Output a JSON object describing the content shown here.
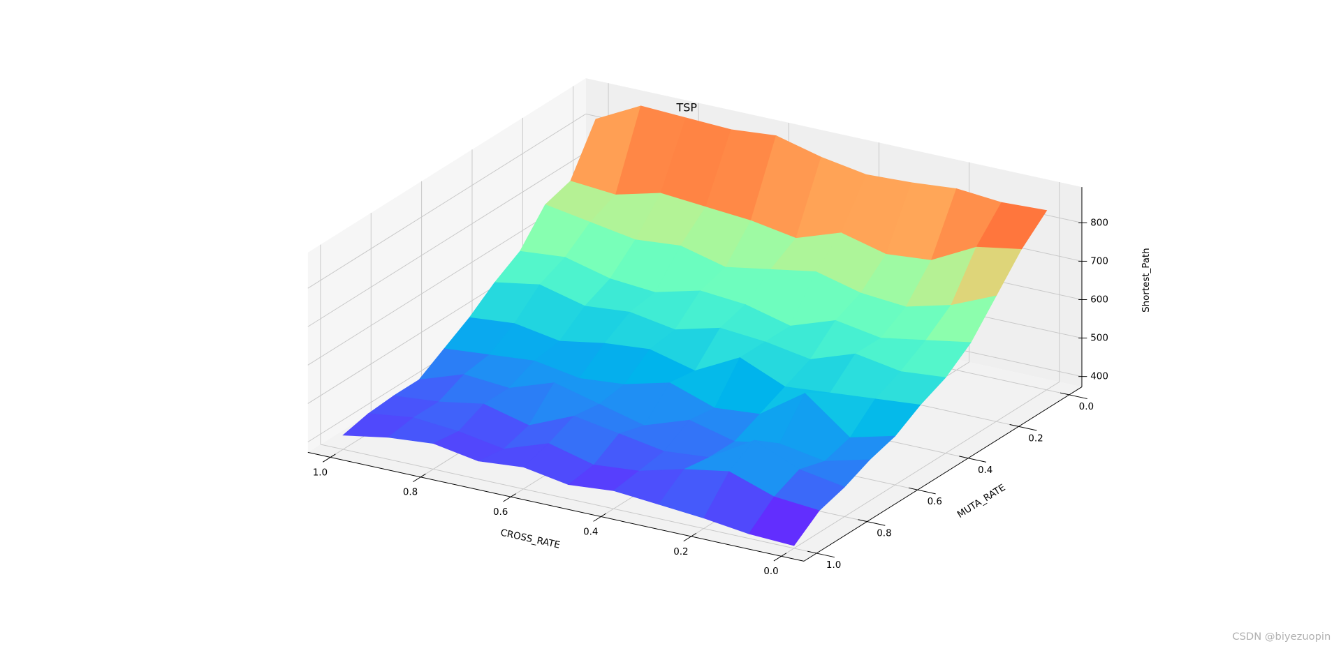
{
  "chart_data": {
    "type": "surface",
    "title": "TSP",
    "x_label": "CROSS_RATE",
    "y_label": "MUTA_RATE",
    "z_label": "Shortest_Path",
    "x": [
      0,
      0.1,
      0.2,
      0.3,
      0.4,
      0.5,
      0.6,
      0.7,
      0.8,
      0.9,
      1
    ],
    "y": [
      0,
      0.1,
      0.2,
      0.3,
      0.4,
      0.5,
      0.6,
      0.7,
      0.8,
      0.9,
      1
    ],
    "z": [
      [
        840,
        835,
        845,
        835,
        830,
        850,
        880,
        870,
        875,
        880,
        820
      ],
      [
        780,
        760,
        700,
        690,
        720,
        680,
        700,
        710,
        720,
        690,
        700
      ],
      [
        700,
        650,
        620,
        630,
        660,
        640,
        620,
        650,
        640,
        660,
        680
      ],
      [
        620,
        600,
        580,
        600,
        560,
        590,
        600,
        570,
        580,
        610,
        600
      ],
      [
        570,
        560,
        580,
        540,
        560,
        570,
        540,
        560,
        550,
        580,
        560
      ],
      [
        540,
        530,
        520,
        510,
        560,
        500,
        530,
        520,
        500,
        520,
        510
      ],
      [
        500,
        470,
        560,
        480,
        470,
        510,
        480,
        470,
        490,
        480,
        470
      ],
      [
        480,
        450,
        470,
        450,
        480,
        440,
        470,
        500,
        460,
        470,
        430
      ],
      [
        450,
        470,
        520,
        450,
        440,
        460,
        480,
        430,
        460,
        440,
        430
      ],
      [
        430,
        440,
        480,
        460,
        430,
        420,
        450,
        410,
        430,
        440,
        425
      ],
      [
        380,
        385,
        400,
        410,
        420,
        410,
        430,
        420,
        440,
        430,
        410
      ]
    ],
    "colormap": "rainbow",
    "xlim": [
      -0.05,
      1.05
    ],
    "ylim": [
      -0.05,
      1.05
    ],
    "zlim": [
      373,
      893
    ],
    "xticks": [
      {
        "value": 0,
        "label": "0.0"
      },
      0.2,
      0.4,
      0.6,
      0.8,
      {
        "value": 1,
        "label": "1.0"
      }
    ],
    "yticks": [
      {
        "value": 0,
        "label": "0.0"
      },
      0.2,
      0.4,
      0.6,
      0.8,
      {
        "value": 1,
        "label": "1.0"
      }
    ],
    "zticks": [
      400,
      500,
      600,
      700,
      800
    ],
    "grid": true,
    "watermark": "CSDN @biyezuopin"
  }
}
